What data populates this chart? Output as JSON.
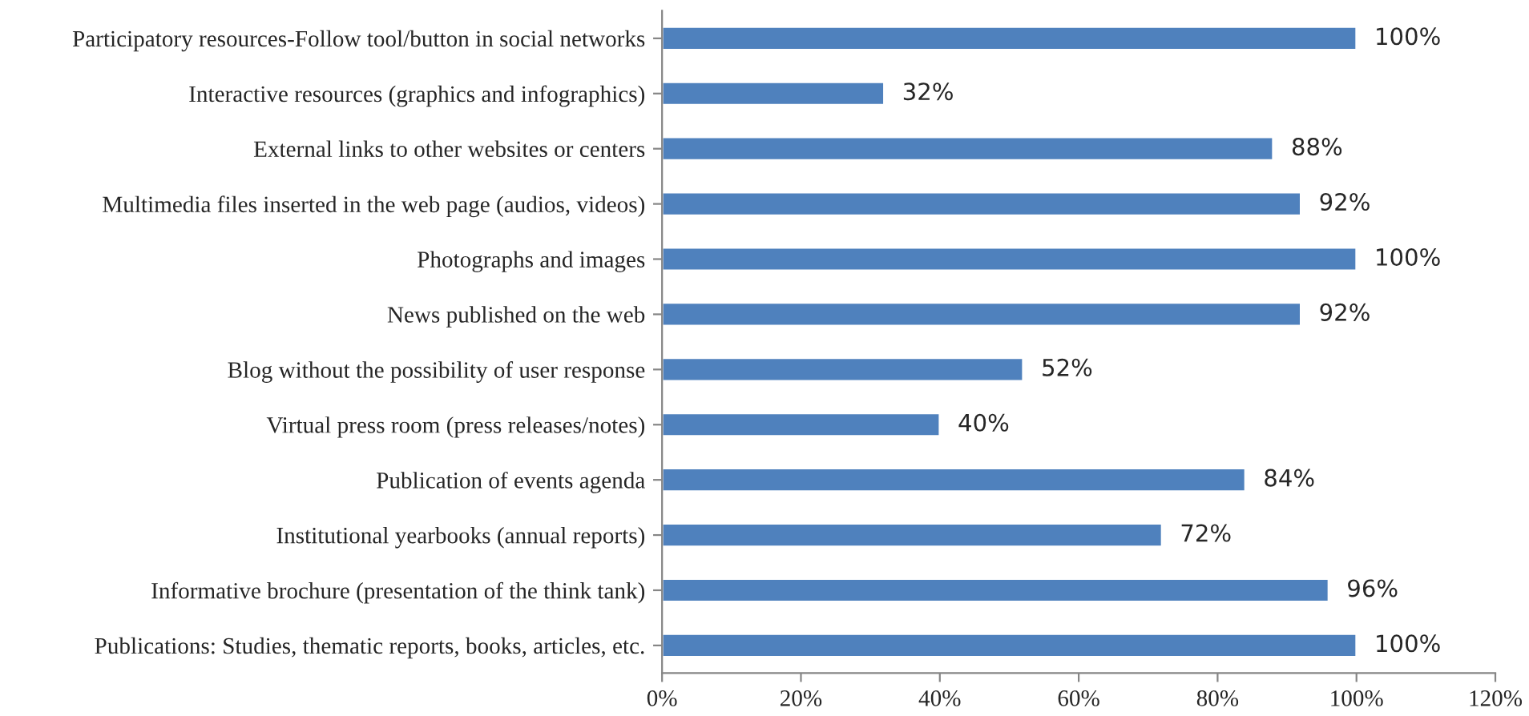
{
  "chart_data": {
    "type": "bar",
    "orientation": "horizontal",
    "categories": [
      "Participatory resources-Follow tool/button in social networks",
      "Interactive resources (graphics and infographics)",
      "External links to other websites or centers",
      "Multimedia files inserted in the web page (audios, videos)",
      "Photographs and images",
      "News published on the web",
      "Blog without the possibility of user response",
      "Virtual press room (press releases/notes)",
      "Publication of events agenda",
      "Institutional yearbooks (annual reports)",
      "Informative brochure (presentation of the think tank)",
      "Publications: Studies, thematic reports, books, articles, etc."
    ],
    "values": [
      100,
      32,
      88,
      92,
      100,
      92,
      52,
      40,
      84,
      72,
      96,
      100
    ],
    "value_labels": [
      "100%",
      "32%",
      "88%",
      "92%",
      "100%",
      "92%",
      "52%",
      "40%",
      "84%",
      "72%",
      "96%",
      "100%"
    ],
    "color": "#4f81bd",
    "xlim": [
      0,
      120
    ],
    "xticks": [
      {
        "value": 0,
        "label": "0%"
      },
      {
        "value": 20,
        "label": "20%"
      },
      {
        "value": 40,
        "label": "40%"
      },
      {
        "value": 60,
        "label": "60%"
      },
      {
        "value": 80,
        "label": "80%"
      },
      {
        "value": 100,
        "label": "100%"
      },
      {
        "value": 120,
        "label": "120%"
      }
    ],
    "grid": false,
    "legend": false
  }
}
